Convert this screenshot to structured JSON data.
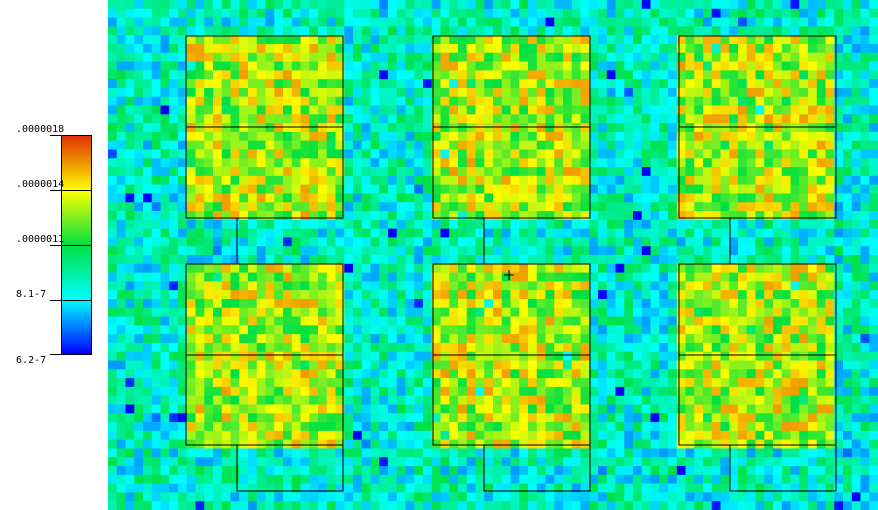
{
  "chart_data": {
    "type": "heatmap",
    "colorbar": {
      "ticks": [
        {
          "label": ".0000018",
          "value": 1.8e-06
        },
        {
          "label": ".0000014",
          "value": 1.4e-06
        },
        {
          "label": ".0000011",
          "value": 1.1e-06
        },
        {
          "label": "8.1-7",
          "value": 8.1e-07
        },
        {
          "label": "6.2-7",
          "value": 6.2e-07
        }
      ],
      "range": [
        6.2e-07,
        1.8e-06
      ],
      "colors": [
        "#0000ff",
        "#00ffff",
        "#00e040",
        "#ffff00",
        "#e03000"
      ]
    },
    "background_level": 1e-06,
    "panel_level": 1.4e-06,
    "grid": {
      "rows": 58,
      "cols": 88
    },
    "layout": {
      "columns": 3,
      "panels_per_column": 4,
      "tabs_per_column": 2
    },
    "crosshair": true
  }
}
